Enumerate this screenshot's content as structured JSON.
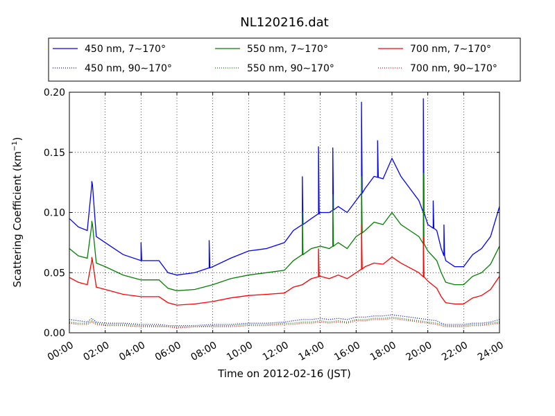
{
  "chart_data": {
    "type": "line",
    "title": "NL120216.dat",
    "xlabel": "Time on 2012-02-16 (JST)",
    "ylabel": "Scattering Coefficient (km",
    "ylabel_superscript": "−1",
    "ylabel_close": ")",
    "xlim": [
      0,
      24
    ],
    "ylim": [
      0,
      0.2
    ],
    "xticks": [
      0,
      2,
      4,
      6,
      8,
      10,
      12,
      14,
      16,
      18,
      20,
      22,
      24
    ],
    "xtick_labels": [
      "00:00",
      "02:00",
      "04:00",
      "06:00",
      "08:00",
      "10:00",
      "12:00",
      "14:00",
      "16:00",
      "18:00",
      "20:00",
      "22:00",
      "24:00"
    ],
    "yticks": [
      0,
      0.05,
      0.1,
      0.15,
      0.2
    ],
    "ytick_labels": [
      "0.00",
      "0.05",
      "0.10",
      "0.15",
      "0.20"
    ],
    "grid": true,
    "legend_position": "above plot, 3 columns",
    "x": [
      0,
      0.5,
      1,
      1.25,
      1.5,
      2,
      3,
      4,
      5,
      5.5,
      6,
      7,
      8,
      9,
      10,
      11,
      12,
      12.5,
      13,
      13.5,
      14,
      14.5,
      15,
      15.5,
      16,
      16.5,
      17,
      17.5,
      18,
      18.5,
      19,
      19.5,
      20,
      20.5,
      20.75,
      21,
      21.5,
      22,
      22.5,
      23,
      23.5,
      24
    ],
    "series": [
      {
        "name": "450 nm, 7∼170°",
        "color": "#0000ff",
        "style": "solid",
        "values": [
          0.095,
          0.088,
          0.085,
          0.123,
          0.08,
          0.075,
          0.065,
          0.06,
          0.06,
          0.05,
          0.048,
          0.05,
          0.055,
          0.062,
          0.068,
          0.07,
          0.075,
          0.085,
          0.09,
          0.095,
          0.1,
          0.1,
          0.105,
          0.1,
          0.11,
          0.12,
          0.13,
          0.128,
          0.145,
          0.13,
          0.12,
          0.11,
          0.09,
          0.085,
          0.07,
          0.06,
          0.055,
          0.055,
          0.065,
          0.07,
          0.08,
          0.105
        ]
      },
      {
        "name": "550 nm, 7∼170°",
        "color": "#008000",
        "style": "solid",
        "values": [
          0.07,
          0.064,
          0.062,
          0.09,
          0.058,
          0.055,
          0.048,
          0.044,
          0.044,
          0.037,
          0.035,
          0.036,
          0.04,
          0.045,
          0.048,
          0.05,
          0.052,
          0.06,
          0.065,
          0.07,
          0.072,
          0.07,
          0.075,
          0.07,
          0.08,
          0.085,
          0.092,
          0.09,
          0.1,
          0.09,
          0.085,
          0.08,
          0.068,
          0.06,
          0.05,
          0.042,
          0.04,
          0.04,
          0.047,
          0.05,
          0.057,
          0.072
        ]
      },
      {
        "name": "700 nm, 7∼170°",
        "color": "#ff0000",
        "style": "solid",
        "values": [
          0.046,
          0.042,
          0.04,
          0.06,
          0.038,
          0.036,
          0.032,
          0.03,
          0.03,
          0.025,
          0.023,
          0.024,
          0.026,
          0.029,
          0.031,
          0.032,
          0.033,
          0.038,
          0.04,
          0.045,
          0.047,
          0.045,
          0.048,
          0.045,
          0.05,
          0.055,
          0.058,
          0.057,
          0.063,
          0.058,
          0.054,
          0.05,
          0.043,
          0.037,
          0.03,
          0.025,
          0.024,
          0.024,
          0.029,
          0.031,
          0.036,
          0.047
        ]
      },
      {
        "name": "450 nm, 90∼170°",
        "color": "#0000ff",
        "style": "dotted",
        "values": [
          0.011,
          0.01,
          0.009,
          0.012,
          0.009,
          0.008,
          0.008,
          0.007,
          0.007,
          0.006,
          0.006,
          0.006,
          0.007,
          0.007,
          0.008,
          0.008,
          0.009,
          0.01,
          0.011,
          0.011,
          0.012,
          0.011,
          0.012,
          0.011,
          0.013,
          0.013,
          0.014,
          0.014,
          0.015,
          0.014,
          0.013,
          0.012,
          0.011,
          0.01,
          0.008,
          0.007,
          0.007,
          0.007,
          0.008,
          0.008,
          0.009,
          0.011
        ]
      },
      {
        "name": "550 nm, 90∼170°",
        "color": "#008000",
        "style": "dotted",
        "values": [
          0.009,
          0.008,
          0.008,
          0.01,
          0.008,
          0.007,
          0.007,
          0.006,
          0.006,
          0.005,
          0.005,
          0.005,
          0.006,
          0.006,
          0.007,
          0.007,
          0.008,
          0.008,
          0.009,
          0.009,
          0.01,
          0.009,
          0.01,
          0.009,
          0.011,
          0.011,
          0.012,
          0.012,
          0.013,
          0.012,
          0.011,
          0.01,
          0.009,
          0.008,
          0.007,
          0.006,
          0.006,
          0.006,
          0.007,
          0.007,
          0.008,
          0.009
        ]
      },
      {
        "name": "700 nm, 90∼170°",
        "color": "#ff0000",
        "style": "dotted",
        "values": [
          0.008,
          0.007,
          0.007,
          0.009,
          0.007,
          0.006,
          0.006,
          0.005,
          0.005,
          0.005,
          0.004,
          0.005,
          0.005,
          0.005,
          0.006,
          0.006,
          0.007,
          0.007,
          0.008,
          0.008,
          0.009,
          0.008,
          0.009,
          0.008,
          0.01,
          0.01,
          0.011,
          0.011,
          0.012,
          0.011,
          0.01,
          0.009,
          0.008,
          0.007,
          0.006,
          0.005,
          0.005,
          0.005,
          0.006,
          0.006,
          0.007,
          0.008
        ]
      }
    ],
    "spikes": [
      {
        "x": 1.25,
        "y": 0.126,
        "series": 0
      },
      {
        "x": 4.0,
        "y": 0.075,
        "series": 0
      },
      {
        "x": 7.8,
        "y": 0.077,
        "series": 0
      },
      {
        "x": 13.0,
        "y": 0.13,
        "series": 0
      },
      {
        "x": 13.9,
        "y": 0.155,
        "series": 0
      },
      {
        "x": 14.7,
        "y": 0.154,
        "series": 0
      },
      {
        "x": 16.3,
        "y": 0.192,
        "series": 0
      },
      {
        "x": 17.2,
        "y": 0.16,
        "series": 0
      },
      {
        "x": 19.75,
        "y": 0.195,
        "series": 0
      },
      {
        "x": 20.3,
        "y": 0.11,
        "series": 0
      },
      {
        "x": 20.9,
        "y": 0.09,
        "series": 0
      },
      {
        "x": 1.25,
        "y": 0.093,
        "series": 1
      },
      {
        "x": 13.0,
        "y": 0.1,
        "series": 1
      },
      {
        "x": 14.7,
        "y": 0.115,
        "series": 1
      },
      {
        "x": 16.3,
        "y": 0.13,
        "series": 1
      },
      {
        "x": 19.75,
        "y": 0.133,
        "series": 1
      },
      {
        "x": 1.25,
        "y": 0.063,
        "series": 2
      },
      {
        "x": 13.9,
        "y": 0.07,
        "series": 2
      },
      {
        "x": 16.3,
        "y": 0.09,
        "series": 2
      },
      {
        "x": 19.75,
        "y": 0.08,
        "series": 2
      }
    ]
  }
}
